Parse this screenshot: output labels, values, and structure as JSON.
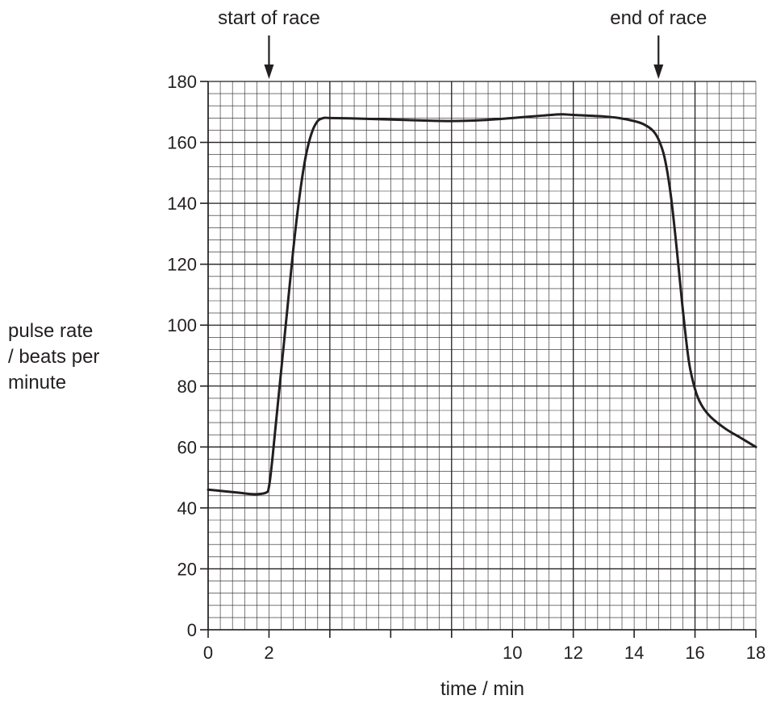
{
  "chart_data": {
    "type": "line",
    "xlabel": "time / min",
    "ylabel_lines": [
      "pulse rate",
      "/ beats per",
      "minute"
    ],
    "xlim": [
      0,
      18
    ],
    "ylim": [
      0,
      180
    ],
    "grid": true,
    "x_tick_values": [
      0,
      2,
      4,
      6,
      8,
      10,
      12,
      14,
      16,
      18
    ],
    "x_tick_labels": [
      "0",
      "2",
      "",
      "",
      "",
      "10",
      "12",
      "14",
      "16",
      "18"
    ],
    "y_tick_values": [
      0,
      20,
      40,
      60,
      80,
      100,
      120,
      140,
      160,
      180
    ],
    "y_tick_labels": [
      "0",
      "20",
      "40",
      "60",
      "80",
      "100",
      "120",
      "140",
      "160",
      "180"
    ],
    "annotations": [
      {
        "label": "start of race",
        "x": 2
      },
      {
        "label": "end of race",
        "x": 14.8
      }
    ],
    "series": [
      {
        "x": [
          0,
          0.5,
          1.0,
          1.5,
          1.9,
          2.0,
          2.1,
          2.2,
          2.4,
          2.6,
          2.8,
          3.0,
          3.2,
          3.4,
          3.6,
          3.8,
          4.0,
          5.0,
          6.0,
          7.0,
          8.0,
          9.0,
          10.0,
          11.0,
          11.6,
          12.0,
          13.0,
          13.5,
          14.0,
          14.3,
          14.6,
          14.8,
          15.0,
          15.2,
          15.4,
          15.6,
          15.8,
          16.0,
          16.2,
          16.5,
          17.0,
          17.5,
          18.0
        ],
        "y": [
          46,
          45.5,
          45,
          44.5,
          45,
          47,
          55,
          65,
          85,
          105,
          125,
          142,
          155,
          163,
          167,
          168,
          168,
          167.8,
          167.5,
          167.2,
          167,
          167.3,
          168,
          168.8,
          169.2,
          169,
          168.5,
          168,
          167,
          166,
          164,
          161,
          155,
          143,
          125,
          105,
          88,
          79,
          74,
          70,
          66,
          63,
          60
        ]
      }
    ]
  }
}
